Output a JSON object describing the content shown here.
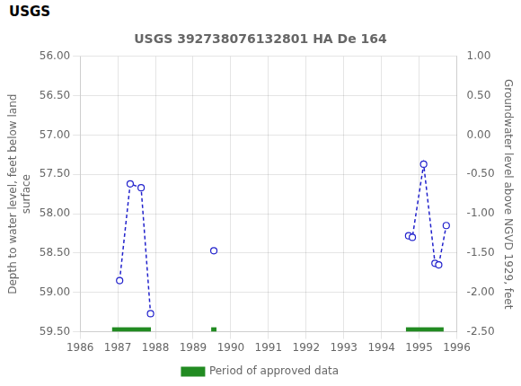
{
  "chart_data": {
    "type": "line",
    "title": "USGS 392738076132801 HA De 164",
    "annotations": [
      "USGS"
    ],
    "ylabel": "Depth to water level, feet below land\nsurface",
    "y2label": "Groundwater level above NGVD 1929, feet",
    "x": [
      1987.05,
      1987.33,
      1987.62,
      1987.87,
      null,
      1989.55,
      null,
      1994.72,
      1994.82,
      1995.12,
      1995.42,
      1995.52,
      1995.72
    ],
    "series": [
      {
        "type": "line",
        "color": "#2222cc",
        "marker": "o",
        "line_style": "dashed",
        "values": [
          58.85,
          57.62,
          57.67,
          59.27,
          null,
          58.47,
          null,
          58.28,
          58.3,
          57.37,
          58.63,
          58.65,
          58.15
        ]
      },
      {
        "name": "Period of approved data",
        "type": "interval",
        "color": "#228B22",
        "intervals": [
          [
            1986.85,
            1987.88
          ],
          [
            1989.48,
            1989.62
          ],
          [
            1994.65,
            1995.65
          ]
        ]
      }
    ],
    "xlim": [
      1986,
      1996
    ],
    "xticks": [
      1986,
      1987,
      1988,
      1989,
      1990,
      1991,
      1992,
      1993,
      1994,
      1995,
      1996
    ],
    "ylim": [
      59.5,
      56.0
    ],
    "yticks": [
      {
        "value": 56.0,
        "label": "56.00"
      },
      {
        "value": 56.5,
        "label": "56.50"
      },
      {
        "value": 57.0,
        "label": "57.00"
      },
      {
        "value": 57.5,
        "label": "57.50"
      },
      {
        "value": 58.0,
        "label": "58.00"
      },
      {
        "value": 58.5,
        "label": "58.50"
      },
      {
        "value": 59.0,
        "label": "59.00"
      },
      {
        "value": 59.5,
        "label": "59.50"
      }
    ],
    "y2lim": [
      -2.5,
      1.0
    ],
    "y2ticks": [
      {
        "value": 1.0,
        "label": "1.00"
      },
      {
        "value": 0.5,
        "label": "0.50"
      },
      {
        "value": 0.0,
        "label": "0.00"
      },
      {
        "value": -0.5,
        "label": "-0.50"
      },
      {
        "value": -1.0,
        "label": "-1.00"
      },
      {
        "value": -1.5,
        "label": "-1.50"
      },
      {
        "value": -2.0,
        "label": "-2.00"
      },
      {
        "value": -2.5,
        "label": "-2.50"
      }
    ],
    "grid": true,
    "legend": "bottom"
  }
}
